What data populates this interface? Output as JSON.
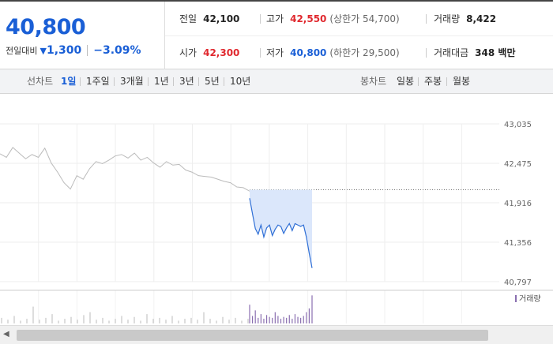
{
  "quote": {
    "price": "40,800",
    "change_label": "전일대비",
    "change_arrow": "▼",
    "change_amount": "1,300",
    "change_pct": "−3.09%",
    "prev_close_label": "전일",
    "prev_close": "42,100",
    "high_label": "고가",
    "high": "42,550",
    "upper_limit": "(상한가 54,700)",
    "volume_label": "거래량",
    "volume": "8,422",
    "open_label": "시가",
    "open": "42,300",
    "low_label": "저가",
    "low": "40,800",
    "lower_limit": "(하한가 29,500)",
    "amount_label": "거래대금",
    "amount": "348 백만"
  },
  "tabs": {
    "line_label": "선차트",
    "periods": [
      "1일",
      "1주일",
      "3개월",
      "1년",
      "3년",
      "5년",
      "10년"
    ],
    "active_period": "1일",
    "candle_label": "봉차트",
    "candles": [
      "일봉",
      "주봉",
      "월봉"
    ]
  },
  "chart_data": {
    "type": "line",
    "y_ticks": [
      "43,035",
      "42,475",
      "41,916",
      "41,356",
      "40,797"
    ],
    "ylim": [
      40797,
      43035
    ],
    "prev_close": 42100,
    "legend": "거래량",
    "colors": {
      "history": "#bbbbbb",
      "today": "#2f6fd6",
      "today_fill": "#dbe7fb",
      "volume_hist": "#bbbbbb",
      "volume_today": "#8a6fb0"
    },
    "history_y": [
      42610,
      42560,
      42700,
      42620,
      42540,
      42600,
      42560,
      42690,
      42480,
      42350,
      42200,
      42110,
      42300,
      42250,
      42400,
      42500,
      42470,
      42520,
      42580,
      42600,
      42550,
      42620,
      42520,
      42560,
      42480,
      42420,
      42500,
      42450,
      42460,
      42380,
      42350,
      42300,
      42290,
      42280,
      42250,
      42220,
      42200,
      42140,
      42130,
      42080
    ],
    "today_y": [
      41980,
      41760,
      41550,
      41470,
      41600,
      41430,
      41560,
      41600,
      41450,
      41540,
      41600,
      41580,
      41480,
      41560,
      41620,
      41520,
      41620,
      41600,
      41580,
      41600,
      41430,
      41200,
      40990
    ],
    "volume_hist": [
      6,
      4,
      8,
      3,
      5,
      18,
      4,
      6,
      10,
      3,
      5,
      7,
      4,
      9,
      12,
      4,
      6,
      3,
      5,
      8,
      4,
      7,
      3,
      10,
      5,
      6,
      4,
      8,
      3,
      5,
      6,
      4,
      12,
      5,
      3,
      7,
      4,
      6,
      3,
      5
    ],
    "volume_today": [
      20,
      8,
      14,
      6,
      10,
      5,
      9,
      7,
      6,
      12,
      8,
      5,
      7,
      6,
      9,
      5,
      10,
      7,
      6,
      8,
      12,
      16,
      30
    ]
  }
}
